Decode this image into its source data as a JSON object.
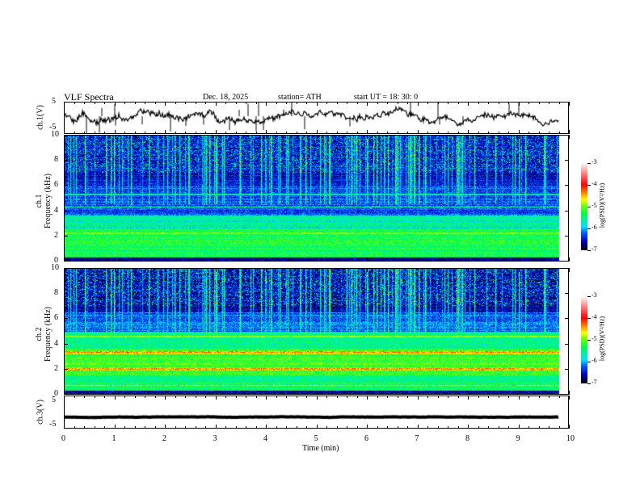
{
  "header": {
    "title": "VLF  Spectra",
    "date": "Dec. 18, 2025",
    "station": "station= ATH",
    "start": "start  UT  =    18: 30: 0"
  },
  "chart_data": {
    "type": "heatmap",
    "title": "VLF  Spectra",
    "xlabel": "Time  (min)",
    "xlim": [
      0,
      10
    ],
    "x_ticks": [
      "0",
      "1",
      "2",
      "3",
      "4",
      "5",
      "6",
      "7",
      "8",
      "9",
      "10"
    ],
    "data_end_min": 9.8,
    "panels": [
      {
        "name": "ch.1(V)",
        "type": "line",
        "ylabel": "ch.1(V)",
        "ylim": [
          -5,
          5
        ],
        "y_ticks": [
          "5",
          "-5"
        ],
        "mean_value": 0.5
      },
      {
        "name": "ch.1 spectrogram",
        "type": "heatmap",
        "ylabel": "ch.1\nFrequency  (kHz)",
        "ylabel_lines": [
          "ch.1",
          "Frequency  (kHz)"
        ],
        "ylim": [
          0,
          10
        ],
        "y_ticks": [
          "10",
          "8",
          "6",
          "4",
          "2",
          "0"
        ],
        "colorbar": {
          "label": "log(PSD)(V²/Hz)",
          "range": [
            -7,
            -3
          ],
          "ticks": [
            "-3",
            "-4",
            "-5",
            "-6",
            "-7"
          ]
        }
      },
      {
        "name": "ch.2 spectrogram",
        "type": "heatmap",
        "ylabel_lines": [
          "ch.2",
          "Frequency  (kHz)"
        ],
        "ylim": [
          0,
          10
        ],
        "y_ticks": [
          "10",
          "8",
          "6",
          "4",
          "2",
          "0"
        ],
        "colorbar": {
          "label": "log(PSD)(V²/Hz)",
          "range": [
            -7,
            -3
          ],
          "ticks": [
            "-3",
            "-4",
            "-5",
            "-6",
            "-7"
          ]
        }
      },
      {
        "name": "ch.3(V)",
        "type": "line",
        "ylabel": "ch.3(V)",
        "ylim": [
          -5,
          5
        ],
        "y_ticks": [
          "5",
          "-5"
        ],
        "mean_value": -1.5
      }
    ]
  }
}
